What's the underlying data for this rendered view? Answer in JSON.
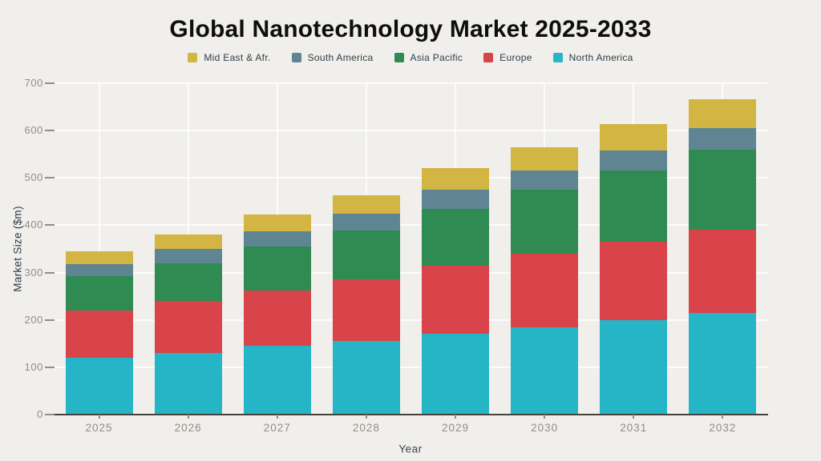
{
  "title": "Global Nanotechnology Market 2025-2033",
  "legend": [
    {
      "label": "Mid East & Afr.",
      "color": "#d3b543"
    },
    {
      "label": "South America",
      "color": "#5f8593"
    },
    {
      "label": "Asia Pacific",
      "color": "#2f8b51"
    },
    {
      "label": "Europe",
      "color": "#d8444a"
    },
    {
      "label": "North America",
      "color": "#26b4c7"
    }
  ],
  "colors": {
    "background": "#f0efeb",
    "gridline": "#fbfbf8",
    "axis_line": "#46413a",
    "tick_text": "#8f8e86",
    "label_text": "#2c3e4a",
    "title_text": "#0e0e0e"
  },
  "chart_data": {
    "type": "bar",
    "stacked": true,
    "title": "Global Nanotechnology Market 2025-2033",
    "xlabel": "Year",
    "ylabel": "Market Size ($m)",
    "ylim": [
      0,
      700
    ],
    "yticks": [
      0,
      100,
      200,
      300,
      400,
      500,
      600,
      700
    ],
    "grid": true,
    "legend_position": "top",
    "categories": [
      "2025",
      "2026",
      "2027",
      "2028",
      "2029",
      "2030",
      "2031",
      "2032"
    ],
    "series": [
      {
        "name": "North America",
        "color": "#26b4c7",
        "values": [
          120,
          130,
          145,
          155,
          170,
          185,
          200,
          215
        ]
      },
      {
        "name": "Europe",
        "color": "#d8444a",
        "values": [
          100,
          110,
          117,
          130,
          145,
          155,
          165,
          175
        ]
      },
      {
        "name": "Asia Pacific",
        "color": "#2f8b51",
        "values": [
          72,
          80,
          93,
          104,
          120,
          135,
          150,
          170
        ]
      },
      {
        "name": "South America",
        "color": "#5f8593",
        "values": [
          26,
          30,
          33,
          35,
          40,
          40,
          43,
          45
        ]
      },
      {
        "name": "Mid East & Afr.",
        "color": "#d3b543",
        "values": [
          27,
          30,
          34,
          39,
          45,
          50,
          55,
          62
        ]
      }
    ],
    "totals": [
      345,
      380,
      422,
      463,
      520,
      565,
      613,
      667
    ]
  }
}
